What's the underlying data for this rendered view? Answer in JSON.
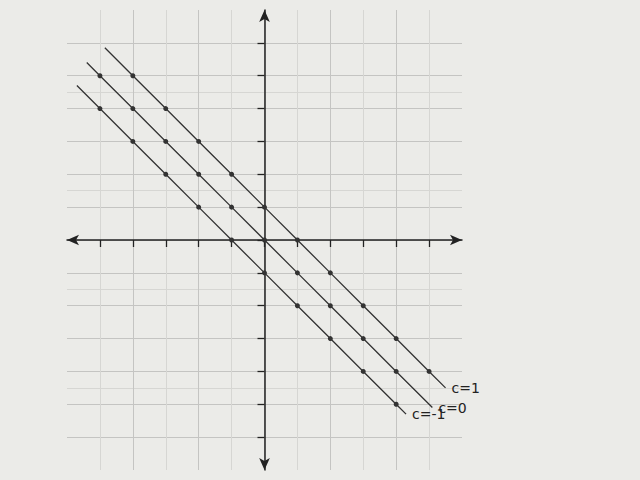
{
  "chart_data": {
    "type": "line",
    "xlim": [
      -6,
      6
    ],
    "ylim": [
      -7,
      7
    ],
    "xticks": [
      -5,
      -4,
      -3,
      -2,
      -1,
      0,
      1,
      2,
      3,
      4,
      5
    ],
    "yticks": [
      -6,
      -5,
      -4,
      -3,
      -2,
      -1,
      0,
      1,
      2,
      3,
      4,
      5,
      6
    ],
    "grid": true,
    "tick_labels": false,
    "marker": "circle",
    "line_style": "solid",
    "series": [
      {
        "name": "c=1",
        "color": "#333333",
        "x": [
          -4.85,
          -4,
          -3,
          -2,
          -1,
          0,
          1,
          2,
          3,
          4,
          5,
          5.5
        ],
        "values": [
          5.85,
          5,
          4,
          3,
          2,
          1,
          0,
          -1,
          -2,
          -3,
          -4,
          -4.5
        ]
      },
      {
        "name": "c=0",
        "color": "#333333",
        "x": [
          -5.4,
          -5,
          -4,
          -3,
          -2,
          -1,
          0,
          1,
          2,
          3,
          4,
          5.1
        ],
        "values": [
          5.4,
          5,
          4,
          3,
          2,
          1,
          0,
          -1,
          -2,
          -3,
          -4,
          -5.1
        ]
      },
      {
        "name": "c=-1",
        "color": "#333333",
        "x": [
          -5.7,
          -5,
          -4,
          -3,
          -2,
          -1,
          0,
          1,
          2,
          3,
          4,
          4.3
        ],
        "values": [
          4.7,
          4,
          3,
          2,
          1,
          0,
          -1,
          -2,
          -3,
          -4,
          -5,
          -5.3
        ]
      }
    ]
  }
}
